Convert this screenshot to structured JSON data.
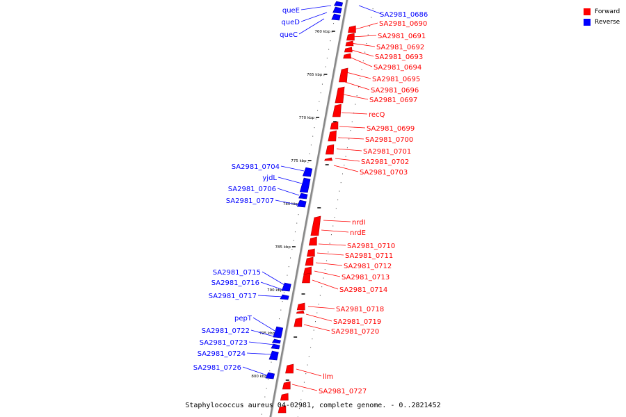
{
  "legend": [
    {
      "label": "Forward",
      "color": "#ff0000"
    },
    {
      "label": "Reverse",
      "color": "#0000ff"
    }
  ],
  "caption": "Staphylococcus aureus 04-02981, complete genome. - 0..2821452",
  "colors": {
    "forward": "#ff0000",
    "reverse": "#0000ff",
    "backbone": "#888888"
  },
  "ticks": [
    "760 kbp",
    "765 kbp",
    "770 kbp",
    "775 kbp",
    "780 kbp",
    "785 kbp",
    "790 kbp",
    "795 kbp",
    "800 kbp"
  ],
  "reverse_genes": [
    "queE",
    "queD",
    "queC",
    "SA2981_0686",
    "SA2981_0704",
    "yjdL",
    "SA2981_0706",
    "SA2981_0707",
    "SA2981_0715",
    "SA2981_0716",
    "SA2981_0717",
    "pepT",
    "SA2981_0722",
    "SA2981_0723",
    "SA2981_0724",
    "SA2981_0726"
  ],
  "forward_genes": [
    "SA2981_0690",
    "SA2981_0691",
    "SA2981_0692",
    "SA2981_0693",
    "SA2981_0694",
    "SA2981_0695",
    "SA2981_0696",
    "SA2981_0697",
    "recQ",
    "SA2981_0699",
    "SA2981_0700",
    "SA2981_0701",
    "SA2981_0702",
    "SA2981_0703",
    "nrdI",
    "nrdE",
    "SA2981_0710",
    "SA2981_0711",
    "SA2981_0712",
    "SA2981_0713",
    "SA2981_0714",
    "SA2981_0718",
    "SA2981_0719",
    "SA2981_0720",
    "llm",
    "SA2981_0727"
  ]
}
